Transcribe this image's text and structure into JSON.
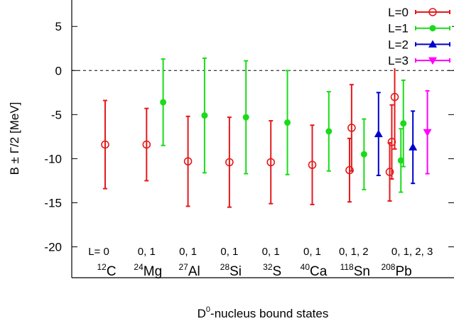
{
  "chart_data": {
    "type": "scatter",
    "xlabel": "D",
    "xlabel_sup": "0",
    "xlabel_rest": "-nucleus bound states",
    "ylabel": "B ± Γ/2  [MeV]",
    "ylim": [
      -23.5,
      8
    ],
    "yticks": [
      5,
      0,
      -5,
      -10,
      -15,
      -20
    ],
    "reference_line": 0,
    "grid": false,
    "legend_position": "top-right",
    "nuclei": [
      {
        "mass": "12",
        "symbol": "C",
        "L_label": "L=  0"
      },
      {
        "mass": "24",
        "symbol": "Mg",
        "L_label": "0, 1"
      },
      {
        "mass": "27",
        "symbol": "Al",
        "L_label": "0, 1"
      },
      {
        "mass": "28",
        "symbol": "Si",
        "L_label": "0, 1"
      },
      {
        "mass": "32",
        "symbol": "S",
        "L_label": "0, 1"
      },
      {
        "mass": "40",
        "symbol": "Ca",
        "L_label": "0, 1"
      },
      {
        "mass": "118",
        "symbol": "Sn",
        "L_label": "0, 1, 2"
      },
      {
        "mass": "208",
        "symbol": "Pb",
        "L_label": "0, 1, 2, 3"
      }
    ],
    "series": [
      {
        "name": "L=0",
        "color": "#e41a1c",
        "marker": "open-circle",
        "points": [
          {
            "nucleus": 0,
            "offset": 0.0,
            "y": -8.4,
            "half_width": 5.0
          },
          {
            "nucleus": 1,
            "offset": 0.0,
            "y": -8.4,
            "half_width": 4.1
          },
          {
            "nucleus": 2,
            "offset": 0.0,
            "y": -10.3,
            "half_width": 5.1
          },
          {
            "nucleus": 3,
            "offset": 0.0,
            "y": -10.4,
            "half_width": 5.1
          },
          {
            "nucleus": 4,
            "offset": 0.0,
            "y": -10.4,
            "half_width": 4.7
          },
          {
            "nucleus": 5,
            "offset": 0.0,
            "y": -10.7,
            "half_width": 4.5
          },
          {
            "nucleus": 6,
            "offset": -0.1,
            "y": -11.3,
            "half_width": 3.6
          },
          {
            "nucleus": 6,
            "offset": -0.05,
            "y": -6.5,
            "half_width": 4.9
          },
          {
            "nucleus": 7,
            "offset": -0.13,
            "y": -11.5,
            "half_width": 3.3
          },
          {
            "nucleus": 7,
            "offset": -0.08,
            "y": -8.1,
            "half_width": 4.2
          },
          {
            "nucleus": 7,
            "offset": -0.01,
            "y": -3.0,
            "half_width": 5.9
          }
        ]
      },
      {
        "name": "L=1",
        "color": "#1adb1a",
        "marker": "filled-circle",
        "points": [
          {
            "nucleus": 1,
            "offset": 0.4,
            "y": -3.6,
            "half_width": 4.9
          },
          {
            "nucleus": 2,
            "offset": 0.4,
            "y": -5.1,
            "half_width": 6.5
          },
          {
            "nucleus": 3,
            "offset": 0.4,
            "y": -5.3,
            "half_width": 6.4
          },
          {
            "nucleus": 4,
            "offset": 0.4,
            "y": -5.9,
            "half_width": 5.9
          },
          {
            "nucleus": 5,
            "offset": 0.4,
            "y": -6.9,
            "half_width": 4.5
          },
          {
            "nucleus": 6,
            "offset": 0.25,
            "y": -9.5,
            "half_width": 4.0
          },
          {
            "nucleus": 7,
            "offset": 0.14,
            "y": -10.2,
            "half_width": 3.6
          },
          {
            "nucleus": 7,
            "offset": 0.2,
            "y": -6.0,
            "half_width": 4.9
          }
        ]
      },
      {
        "name": "L=2",
        "color": "#0000cc",
        "marker": "triangle-up",
        "points": [
          {
            "nucleus": 6,
            "offset": 0.6,
            "y": -7.2,
            "half_width": 4.7
          },
          {
            "nucleus": 7,
            "offset": 0.43,
            "y": -8.7,
            "half_width": 4.1
          }
        ]
      },
      {
        "name": "L=3",
        "color": "#ff00ff",
        "marker": "triangle-down",
        "points": [
          {
            "nucleus": 7,
            "offset": 0.78,
            "y": -7.0,
            "half_width": 4.7
          }
        ]
      }
    ]
  }
}
